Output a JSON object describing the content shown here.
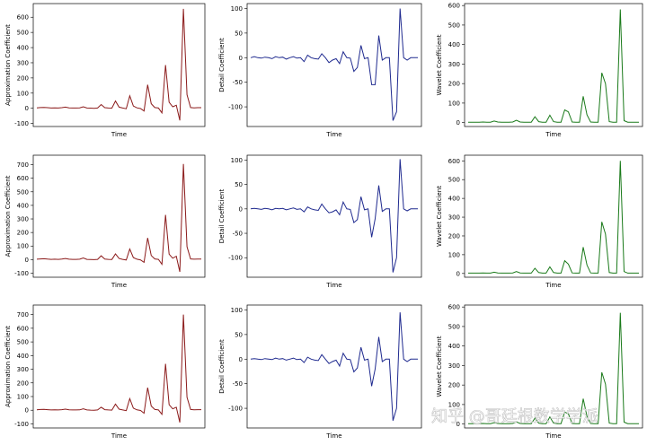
{
  "chart_data": [
    {
      "type": "line",
      "xlabel": "Time",
      "ylabel": "Approximation Coefficient",
      "ylim": [
        -120,
        690
      ],
      "yticks": [
        -100,
        0,
        100,
        200,
        300,
        400,
        500,
        600
      ],
      "series": [
        {
          "color": "#8b1a1a",
          "values": [
            3,
            5,
            6,
            4,
            2,
            3,
            2,
            4,
            8,
            3,
            2,
            2,
            3,
            10,
            2,
            1,
            0,
            2,
            25,
            4,
            2,
            1,
            48,
            8,
            2,
            -3,
            82,
            15,
            3,
            -2,
            -18,
            155,
            30,
            5,
            2,
            -30,
            285,
            40,
            10,
            20,
            -80,
            655,
            90,
            5,
            3,
            4,
            4
          ]
        }
      ]
    },
    {
      "type": "line",
      "xlabel": "Time",
      "ylabel": "Detail Coefficient",
      "ylim": [
        -140,
        110
      ],
      "yticks": [
        -100,
        -50,
        0,
        50,
        100
      ],
      "series": [
        {
          "color": "#1f2a8f",
          "values": [
            0,
            2,
            0,
            -1,
            1,
            0,
            -2,
            2,
            0,
            1,
            -3,
            0,
            2,
            -1,
            0,
            -8,
            5,
            0,
            -2,
            -3,
            8,
            0,
            -10,
            -5,
            -2,
            -12,
            12,
            0,
            -1,
            -28,
            -20,
            25,
            -2,
            0,
            -55,
            -55,
            45,
            -5,
            0,
            0,
            -128,
            -110,
            100,
            0,
            -5,
            0,
            0,
            0
          ]
        }
      ]
    },
    {
      "type": "line",
      "xlabel": "Time",
      "ylabel": "Wavelet Coefficient",
      "ylim": [
        -20,
        610
      ],
      "yticks": [
        0,
        100,
        200,
        300,
        400,
        500,
        600
      ],
      "series": [
        {
          "color": "#1a7a1a",
          "values": [
            2,
            2,
            2,
            2,
            3,
            2,
            2,
            8,
            3,
            2,
            2,
            2,
            3,
            12,
            3,
            2,
            2,
            2,
            30,
            5,
            2,
            2,
            38,
            5,
            2,
            2,
            65,
            55,
            3,
            2,
            2,
            135,
            40,
            3,
            2,
            2,
            255,
            200,
            5,
            2,
            2,
            580,
            10,
            2,
            2,
            2,
            2
          ]
        }
      ]
    },
    {
      "type": "line",
      "xlabel": "Time",
      "ylabel": "Approximation Coefficient",
      "ylim": [
        -130,
        770
      ],
      "yticks": [
        -100,
        0,
        100,
        200,
        300,
        400,
        500,
        600,
        700
      ],
      "series": [
        {
          "color": "#8b1a1a",
          "values": [
            3,
            5,
            6,
            4,
            2,
            3,
            2,
            4,
            8,
            3,
            2,
            2,
            3,
            12,
            2,
            1,
            0,
            2,
            28,
            4,
            2,
            1,
            42,
            8,
            2,
            -3,
            78,
            15,
            3,
            -2,
            -20,
            160,
            30,
            5,
            2,
            -35,
            330,
            40,
            10,
            25,
            -90,
            705,
            95,
            5,
            3,
            4,
            4
          ]
        }
      ]
    },
    {
      "type": "line",
      "xlabel": "Time",
      "ylabel": "Detail Coefficient",
      "ylim": [
        -140,
        110
      ],
      "yticks": [
        -100,
        -50,
        0,
        50,
        100
      ],
      "series": [
        {
          "color": "#1f2a8f",
          "values": [
            0,
            1,
            0,
            -1,
            1,
            0,
            -2,
            1,
            0,
            1,
            -2,
            0,
            2,
            -1,
            0,
            -6,
            4,
            0,
            -2,
            -3,
            10,
            0,
            -8,
            -6,
            -2,
            -12,
            14,
            0,
            -1,
            -28,
            -22,
            25,
            -2,
            0,
            -58,
            -20,
            48,
            -5,
            0,
            0,
            -130,
            -100,
            102,
            0,
            -4,
            0,
            0,
            0
          ]
        }
      ]
    },
    {
      "type": "line",
      "xlabel": "Time",
      "ylabel": "Wavelet Coefficient",
      "ylim": [
        -20,
        630
      ],
      "yticks": [
        0,
        100,
        200,
        300,
        400,
        500,
        600
      ],
      "series": [
        {
          "color": "#1a7a1a",
          "values": [
            2,
            2,
            2,
            2,
            3,
            2,
            2,
            7,
            3,
            2,
            2,
            2,
            3,
            10,
            3,
            2,
            2,
            2,
            28,
            5,
            2,
            2,
            35,
            5,
            2,
            2,
            68,
            50,
            3,
            2,
            2,
            140,
            45,
            3,
            2,
            2,
            275,
            210,
            5,
            2,
            2,
            600,
            10,
            2,
            2,
            2,
            2
          ]
        }
      ]
    },
    {
      "type": "line",
      "xlabel": "Time",
      "ylabel": "Approximation Coefficient",
      "ylim": [
        -130,
        770
      ],
      "yticks": [
        -100,
        0,
        100,
        200,
        300,
        400,
        500,
        600,
        700
      ],
      "series": [
        {
          "color": "#8b1a1a",
          "values": [
            3,
            5,
            6,
            4,
            2,
            3,
            2,
            4,
            8,
            3,
            2,
            2,
            3,
            10,
            2,
            1,
            0,
            2,
            22,
            4,
            2,
            1,
            45,
            8,
            2,
            -3,
            85,
            15,
            3,
            -2,
            -22,
            165,
            30,
            5,
            2,
            -30,
            340,
            40,
            10,
            22,
            -90,
            700,
            95,
            5,
            3,
            4,
            4
          ]
        }
      ]
    },
    {
      "type": "line",
      "xlabel": "Time",
      "ylabel": "Detail Coefficient",
      "ylim": [
        -140,
        110
      ],
      "yticks": [
        -100,
        -50,
        0,
        50,
        100
      ],
      "series": [
        {
          "color": "#1f2a8f",
          "values": [
            0,
            1,
            0,
            -1,
            1,
            0,
            -1,
            2,
            0,
            1,
            -2,
            0,
            2,
            -1,
            0,
            -7,
            4,
            0,
            -2,
            -3,
            9,
            0,
            -9,
            -5,
            -2,
            -14,
            12,
            0,
            -1,
            -26,
            -18,
            24,
            -2,
            0,
            -55,
            -20,
            45,
            -5,
            0,
            0,
            -125,
            -100,
            95,
            0,
            -5,
            0,
            0,
            0
          ]
        }
      ]
    },
    {
      "type": "line",
      "xlabel": "Time",
      "ylabel": "Wavelet Coefficient",
      "ylim": [
        -20,
        610
      ],
      "yticks": [
        0,
        100,
        200,
        300,
        400,
        500,
        600
      ],
      "series": [
        {
          "color": "#1a7a1a",
          "values": [
            2,
            2,
            2,
            2,
            3,
            2,
            2,
            7,
            3,
            2,
            2,
            2,
            3,
            11,
            3,
            2,
            2,
            2,
            30,
            5,
            2,
            2,
            36,
            5,
            2,
            2,
            62,
            52,
            3,
            2,
            2,
            130,
            40,
            3,
            2,
            2,
            265,
            205,
            5,
            2,
            2,
            570,
            10,
            2,
            2,
            2,
            2
          ]
        }
      ]
    }
  ],
  "watermark": "知乎 @哥廷根数学学派"
}
